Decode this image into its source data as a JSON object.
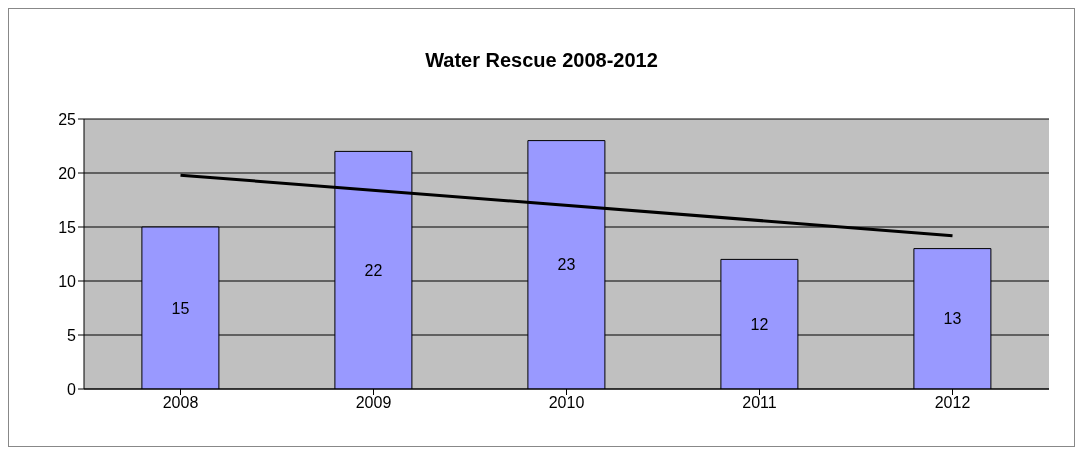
{
  "chart_data": {
    "type": "bar",
    "title": "Water Rescue 2008-2012",
    "categories": [
      "2008",
      "2009",
      "2010",
      "2011",
      "2012"
    ],
    "series": [
      {
        "color": "#9999ff",
        "values": [
          15,
          22,
          23,
          12,
          13
        ],
        "value_labels": [
          "15",
          "22",
          "23",
          "12",
          "13"
        ]
      },
      {
        "type": "line",
        "color": "#000000",
        "values": [
          19.8,
          null,
          null,
          null,
          14.2
        ]
      }
    ],
    "ylim": [
      0,
      25
    ],
    "yticks": [
      0,
      5,
      10,
      15,
      20,
      25
    ],
    "grid": "y",
    "legend": false,
    "marker": "none"
  }
}
